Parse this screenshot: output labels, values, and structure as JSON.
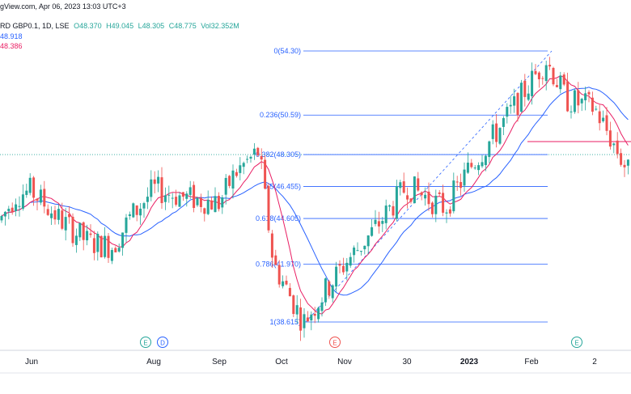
{
  "header": {
    "source_line": "gView.com, Apr 06, 2023 13:03 UTC+3",
    "symbol_line": "RD GBP0.1, 1D, LSE",
    "open": "O48.370",
    "high": "H49.045",
    "low": "L48.305",
    "close": "C48.775",
    "volume": "Vol32.352M",
    "ma_blue_value": "48.918",
    "ma_red_value": "48.386"
  },
  "chart_data": {
    "type": "candlestick",
    "x_ticks": [
      "Jun",
      "Aug",
      "Sep",
      "Oct",
      "Nov",
      "30",
      "2023",
      "Feb",
      "2"
    ],
    "last_price_level": 48.305,
    "fibonacci": {
      "levels": [
        {
          "label": "0(54.30)",
          "value": 54.3
        },
        {
          "label": "0.236(50.59)",
          "value": 50.59
        },
        {
          "label": "0.382(48.305)",
          "value": 48.305
        },
        {
          "label": "0.5(46.455)",
          "value": 46.455
        },
        {
          "label": "0.618(44.605)",
          "value": 44.605
        },
        {
          "label": "0.786(41.970)",
          "value": 41.97
        },
        {
          "label": "1(38.615)",
          "value": 38.615
        }
      ],
      "x_start": "Oct",
      "x_end": "Feb"
    },
    "event_markers": [
      {
        "label": "E",
        "near": "Aug"
      },
      {
        "label": "D",
        "near": "Aug"
      },
      {
        "label": "E",
        "near": "Oct-Nov"
      },
      {
        "label": "E",
        "near": "Feb"
      }
    ],
    "price_path": [
      {
        "x": "May",
        "close": 44.5
      },
      {
        "x": "late May",
        "close": 46.0
      },
      {
        "x": "Jun",
        "close": 46.2
      },
      {
        "x": "mid Jun",
        "close": 44.5
      },
      {
        "x": "late Jun",
        "close": 43.2
      },
      {
        "x": "Jul",
        "close": 43.0
      },
      {
        "x": "mid Jul",
        "close": 44.6
      },
      {
        "x": "Aug",
        "close": 46.3
      },
      {
        "x": "mid Aug",
        "close": 45.8
      },
      {
        "x": "Sep",
        "close": 45.5
      },
      {
        "x": "mid Sep",
        "close": 47.2
      },
      {
        "x": "late Sep",
        "close": 48.5
      },
      {
        "x": "Oct",
        "close": 42.0
      },
      {
        "x": "mid Oct",
        "close": 38.6
      },
      {
        "x": "Nov",
        "close": 42.0
      },
      {
        "x": "mid Nov",
        "close": 43.8
      },
      {
        "x": "30",
        "close": 46.5
      },
      {
        "x": "mid Dec",
        "close": 45.2
      },
      {
        "x": "2023",
        "close": 47.5
      },
      {
        "x": "mid Jan",
        "close": 50.0
      },
      {
        "x": "Feb",
        "close": 53.8
      },
      {
        "x": "mid Feb",
        "close": 51.5
      },
      {
        "x": "2",
        "close": 51.0
      },
      {
        "x": "mid Mar",
        "close": 47.0
      }
    ],
    "ma_fast_color": "#e91e63",
    "ma_slow_color": "#2962ff",
    "up_color": "#26a69a",
    "down_color": "#ef5350",
    "fib_color": "#2962ff"
  }
}
